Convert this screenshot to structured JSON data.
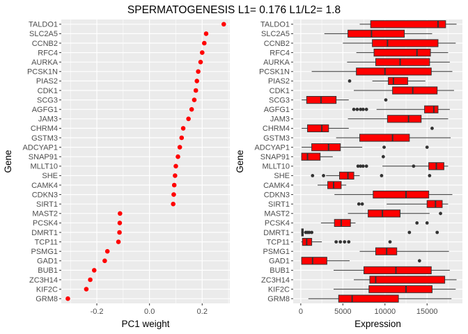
{
  "title": "SPERMATOGENESIS L1= 0.176 L1/L2= 1.8",
  "genes": [
    "TALDO1",
    "SLC2A5",
    "CCNB2",
    "RFC4",
    "AURKA",
    "PCSK1N",
    "PIAS2",
    "CDK1",
    "SCG3",
    "AGFG1",
    "JAM3",
    "CHRM4",
    "GSTM3",
    "ADCYAP1",
    "SNAP91",
    "MLLT10",
    "SHE",
    "CAMK4",
    "CDKN3",
    "SIRT1",
    "MAST2",
    "PCSK4",
    "DMRT1",
    "TCP11",
    "PSMG1",
    "GAD1",
    "BUB1",
    "ZC3H14",
    "KIF2C",
    "GRM8"
  ],
  "colors": {
    "panel_bg": "#ebebeb",
    "grid": "#ffffff",
    "point": "#ff0000",
    "box_fill": "#ff0000",
    "box_line": "#333333",
    "outlier": "#333333"
  },
  "chart_data": [
    {
      "type": "scatter",
      "xlabel": "PC1 weight",
      "ylabel": "Gene",
      "xlim": [
        -0.335,
        0.305
      ],
      "x_ticks": [
        -0.2,
        0.0,
        0.2
      ],
      "x_tick_labels": [
        "-0.2",
        "0.0",
        "0.2"
      ],
      "grid": true,
      "values": [
        0.282,
        0.215,
        0.208,
        0.2,
        0.194,
        0.185,
        0.18,
        0.176,
        0.17,
        0.16,
        0.148,
        0.128,
        0.122,
        0.115,
        0.108,
        0.1,
        0.097,
        0.094,
        0.092,
        0.09,
        -0.112,
        -0.113,
        -0.114,
        -0.118,
        -0.16,
        -0.17,
        -0.21,
        -0.225,
        -0.24,
        -0.31
      ]
    },
    {
      "type": "boxplot",
      "xlabel": "Expression",
      "ylabel": "Gene",
      "xlim": [
        -900,
        19200
      ],
      "x_ticks": [
        0,
        5000,
        10000,
        15000
      ],
      "x_tick_labels": [
        "0",
        "5000",
        "10000",
        "15000"
      ],
      "grid": true,
      "boxes": [
        {
          "lo": 7000,
          "q1": 8300,
          "med": 16300,
          "q3": 17200,
          "hi": 18500,
          "out": []
        },
        {
          "lo": 2800,
          "q1": 5600,
          "med": 8400,
          "q3": 12300,
          "hi": 15600,
          "out": []
        },
        {
          "lo": 5000,
          "q1": 8500,
          "med": 10300,
          "q3": 16300,
          "hi": 18400,
          "out": []
        },
        {
          "lo": 6600,
          "q1": 8700,
          "med": 13800,
          "q3": 15400,
          "hi": 17500,
          "out": []
        },
        {
          "lo": 5500,
          "q1": 8900,
          "med": 11800,
          "q3": 15300,
          "hi": 17700,
          "out": []
        },
        {
          "lo": 1300,
          "q1": 6600,
          "med": 10000,
          "q3": 15500,
          "hi": 18000,
          "out": []
        },
        {
          "lo": 8500,
          "q1": 10400,
          "med": 11000,
          "q3": 12700,
          "hi": 14800,
          "out": [
            5800
          ]
        },
        {
          "lo": 6300,
          "q1": 10900,
          "med": 13300,
          "q3": 16200,
          "hi": 18200,
          "out": []
        },
        {
          "lo": 100,
          "q1": 700,
          "med": 2400,
          "q3": 4200,
          "hi": 5700,
          "out": [
            10100
          ]
        },
        {
          "lo": 9000,
          "q1": 14700,
          "med": 15800,
          "q3": 16300,
          "hi": 17700,
          "out": [
            6300,
            6700,
            7100,
            7400,
            7800
          ]
        },
        {
          "lo": 5600,
          "q1": 10300,
          "med": 12800,
          "q3": 14300,
          "hi": 17500,
          "out": []
        },
        {
          "lo": 100,
          "q1": 800,
          "med": 2500,
          "q3": 3300,
          "hi": 5700,
          "out": [
            15600
          ]
        },
        {
          "lo": 4200,
          "q1": 7000,
          "med": 10900,
          "q3": 12900,
          "hi": 17800,
          "out": []
        },
        {
          "lo": 100,
          "q1": 1300,
          "med": 3300,
          "q3": 4700,
          "hi": 7300,
          "out": [
            9900,
            15000
          ]
        },
        {
          "lo": 50,
          "q1": 100,
          "med": 800,
          "q3": 2300,
          "hi": 3800,
          "out": [
            9800
          ]
        },
        {
          "lo": 9700,
          "q1": 15200,
          "med": 16100,
          "q3": 17000,
          "hi": 17500,
          "out": [
            6800,
            7100,
            7400,
            7800,
            13400
          ]
        },
        {
          "lo": 3000,
          "q1": 4600,
          "med": 5600,
          "q3": 6300,
          "hi": 7000,
          "out": [
            1400,
            2700,
            9600,
            15300
          ]
        },
        {
          "lo": 2000,
          "q1": 3200,
          "med": 3900,
          "q3": 4800,
          "hi": 5400,
          "out": []
        },
        {
          "lo": 4000,
          "q1": 8600,
          "med": 12500,
          "q3": 15200,
          "hi": 18000,
          "out": []
        },
        {
          "lo": 10200,
          "q1": 15000,
          "med": 16000,
          "q3": 16800,
          "hi": 17500,
          "out": [
            6900,
            7300
          ]
        },
        {
          "lo": 5600,
          "q1": 8000,
          "med": 9700,
          "q3": 11800,
          "hi": 15300,
          "out": [
            16600
          ]
        },
        {
          "lo": 2400,
          "q1": 4000,
          "med": 4800,
          "q3": 5900,
          "hi": 6500,
          "out": [
            13800,
            15000
          ]
        },
        {
          "lo": 50,
          "q1": 100,
          "med": 200,
          "q3": 300,
          "hi": 400,
          "out": [
            600,
            800,
            1000,
            1300,
            12900,
            16200
          ]
        },
        {
          "lo": 50,
          "q1": 200,
          "med": 700,
          "q3": 1300,
          "hi": 2500,
          "out": [
            4200,
            4700,
            5200,
            5700,
            10600
          ]
        },
        {
          "lo": 7000,
          "q1": 8900,
          "med": 10200,
          "q3": 11400,
          "hi": 17600,
          "out": []
        },
        {
          "lo": 50,
          "q1": 100,
          "med": 1400,
          "q3": 3100,
          "hi": 5800,
          "out": [
            14100
          ]
        },
        {
          "lo": 3900,
          "q1": 7500,
          "med": 11300,
          "q3": 15500,
          "hi": 17700,
          "out": []
        },
        {
          "lo": 6300,
          "q1": 8200,
          "med": 8900,
          "q3": 17100,
          "hi": 18500,
          "out": []
        },
        {
          "lo": 3900,
          "q1": 8100,
          "med": 12500,
          "q3": 15600,
          "hi": 18400,
          "out": []
        },
        {
          "lo": 900,
          "q1": 4500,
          "med": 6100,
          "q3": 11600,
          "hi": 17900,
          "out": []
        }
      ]
    }
  ]
}
